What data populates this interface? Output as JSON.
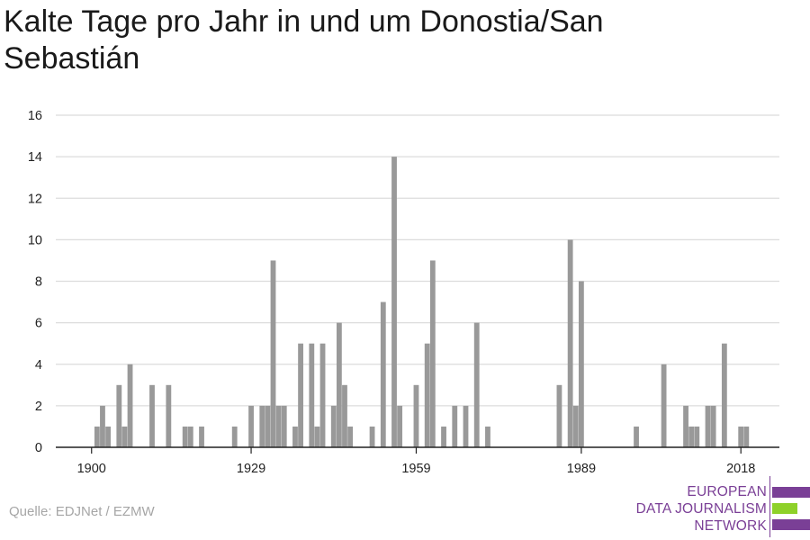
{
  "title": "Kalte Tage pro Jahr in und um Donostia/San Sebastián",
  "source": "Quelle: EDJNet / EZMW",
  "logo": {
    "lines": [
      "EUROPEAN",
      "DATA JOURNALISM",
      "NETWORK"
    ],
    "colors": {
      "purple": "#7a3f96",
      "green": "#8ed12a"
    }
  },
  "colors": {
    "bar": "#999999",
    "grid": "#dcdcdc",
    "axis": "#222222",
    "tick_text": "#222222"
  },
  "chart_data": {
    "type": "bar",
    "title": "Kalte Tage pro Jahr in und um Donostia/San Sebastián",
    "xlabel": "",
    "ylabel": "",
    "ylim": [
      0,
      16
    ],
    "xlim": [
      1893.5,
      2025
    ],
    "y_ticks": [
      0,
      2,
      4,
      6,
      8,
      10,
      12,
      14,
      16
    ],
    "x_ticks": [
      1900,
      1929,
      1959,
      1989,
      2018
    ],
    "grid": true,
    "x": [
      1901,
      1902,
      1903,
      1905,
      1906,
      1907,
      1911,
      1914,
      1917,
      1918,
      1920,
      1926,
      1929,
      1931,
      1932,
      1933,
      1934,
      1935,
      1937,
      1938,
      1940,
      1941,
      1942,
      1944,
      1945,
      1946,
      1947,
      1951,
      1953,
      1955,
      1956,
      1959,
      1961,
      1962,
      1964,
      1966,
      1968,
      1970,
      1972,
      1985,
      1987,
      1988,
      1989,
      1999,
      2004,
      2008,
      2009,
      2010,
      2012,
      2013,
      2015,
      2018,
      2019
    ],
    "values": [
      1,
      2,
      1,
      3,
      1,
      4,
      3,
      3,
      1,
      1,
      1,
      1,
      2,
      2,
      2,
      9,
      2,
      2,
      1,
      5,
      5,
      1,
      5,
      2,
      6,
      3,
      1,
      1,
      7,
      14,
      2,
      3,
      5,
      9,
      1,
      2,
      2,
      6,
      1,
      3,
      10,
      2,
      8,
      1,
      4,
      2,
      1,
      1,
      2,
      2,
      5,
      1,
      1
    ]
  }
}
